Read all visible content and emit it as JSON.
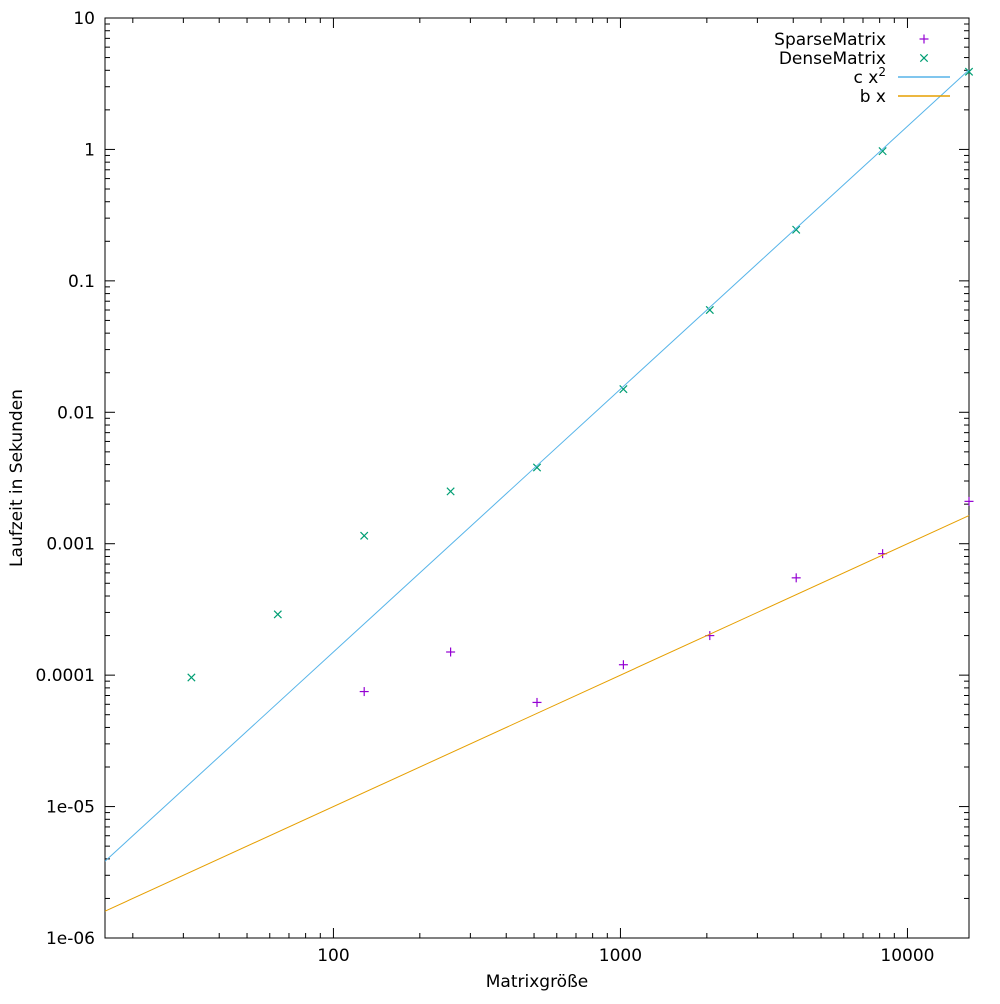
{
  "chart_data": {
    "type": "scatter",
    "title": "",
    "xlabel": "Matrixgröße",
    "ylabel": "Laufzeit in Sekunden",
    "x_scale": "log",
    "y_scale": "log",
    "xlim": [
      16,
      16384
    ],
    "ylim": [
      1e-06,
      10
    ],
    "grid": false,
    "legend_position": "inside top-right",
    "axis_color": "#000000",
    "x_ticks": [
      100,
      1000,
      10000
    ],
    "x_tick_labels": [
      "100",
      "1000",
      "10000"
    ],
    "y_ticks": [
      10,
      1,
      0.1,
      0.01,
      0.001,
      0.0001,
      1e-05,
      1e-06
    ],
    "y_tick_labels": [
      "10",
      "1",
      "0.1",
      "0.01",
      "0.001",
      "0.0001",
      "1e-05",
      "1e-06"
    ],
    "series": [
      {
        "name": "SparseMatrix",
        "legend_label": "SparseMatrix",
        "legend_sup": "",
        "type": "points",
        "marker": "plus",
        "color": "#9400d3",
        "points": [
          [
            128,
            7.5e-05
          ],
          [
            256,
            0.00015
          ],
          [
            512,
            6.2e-05
          ],
          [
            1024,
            0.00012
          ],
          [
            2048,
            0.0002
          ],
          [
            4096,
            0.00055
          ],
          [
            8192,
            0.00084
          ],
          [
            16384,
            0.0021
          ]
        ]
      },
      {
        "name": "DenseMatrix",
        "legend_label": "DenseMatrix",
        "legend_sup": "",
        "type": "points",
        "marker": "cross",
        "color": "#009e73",
        "points": [
          [
            32,
            9.6e-05
          ],
          [
            64,
            0.00029
          ],
          [
            128,
            0.00115
          ],
          [
            256,
            0.0025
          ],
          [
            512,
            0.0038
          ],
          [
            1024,
            0.015
          ],
          [
            2048,
            0.06
          ],
          [
            4096,
            0.245
          ],
          [
            8192,
            0.97
          ],
          [
            16384,
            3.9
          ]
        ]
      },
      {
        "name": "c x^2",
        "legend_label": "c x",
        "legend_sup": "2",
        "type": "line",
        "fn": "quadratic",
        "coef": 1.5e-08,
        "color": "#56b4e9"
      },
      {
        "name": "b x",
        "legend_label": "b x",
        "legend_sup": "",
        "type": "line",
        "fn": "linear",
        "coef": 1e-07,
        "color": "#e69f00"
      }
    ]
  }
}
